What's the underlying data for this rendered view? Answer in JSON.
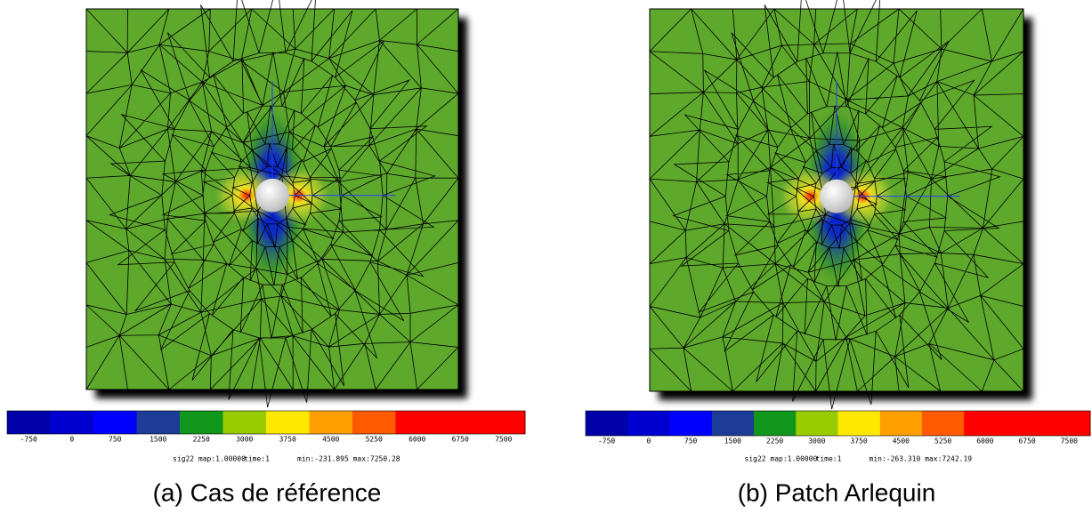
{
  "panels": [
    {
      "caption": "(a) Cas de référence",
      "colorbar_ticks": [
        -750,
        0,
        750,
        1500,
        2250,
        3000,
        3750,
        4500,
        5250,
        6000,
        6750,
        7500
      ],
      "field": "sig22 map:1.00000",
      "time": "time:1",
      "range": "min:-231.895 max:7250.28"
    },
    {
      "caption": "(b) Patch Arlequin",
      "colorbar_ticks": [
        -750,
        0,
        750,
        1500,
        2250,
        3000,
        3750,
        4500,
        5250,
        6000,
        6750,
        7500
      ],
      "field": "sig22 map:1.00000",
      "time": "time:1",
      "range": "min:-263.310 max:7242.19"
    }
  ]
}
